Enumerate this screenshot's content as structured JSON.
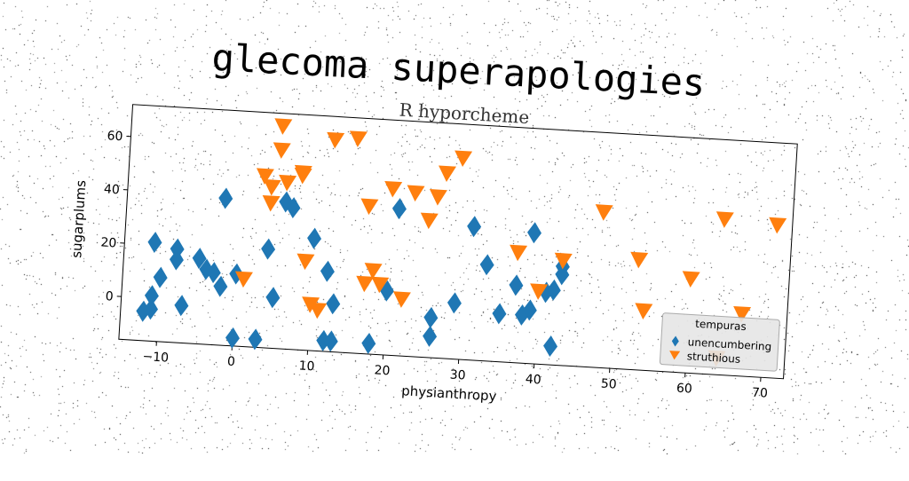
{
  "title": "glecoma superapologies",
  "colors": {
    "series_blue": "#1f77b4",
    "series_orange": "#ff7f0e"
  },
  "chart_data": {
    "type": "scatter",
    "title": "glecoma superapologies",
    "subtitle": "R hyporcheme",
    "xlabel": "physianthropy",
    "ylabel": "sugarplums",
    "xlim": [
      -15,
      73
    ],
    "ylim": [
      -16,
      72
    ],
    "xticks": [
      -10,
      0,
      10,
      20,
      30,
      40,
      50,
      60,
      70
    ],
    "xtick_labels": [
      "−10",
      "0",
      "10",
      "20",
      "30",
      "40",
      "50",
      "60",
      "70"
    ],
    "yticks": [
      0,
      20,
      40,
      60
    ],
    "ytick_labels": [
      "0",
      "20",
      "40",
      "60"
    ],
    "grid": false,
    "legend": {
      "title": "tempuras",
      "placement": "lower-right"
    },
    "series": [
      {
        "name": "unencumbering",
        "marker": "diamond",
        "color": "#1f77b4",
        "points": [
          [
            -12,
            -5
          ],
          [
            -11,
            21
          ],
          [
            -11,
            -4
          ],
          [
            -11,
            1
          ],
          [
            -10,
            8
          ],
          [
            -8,
            19
          ],
          [
            -8,
            15
          ],
          [
            -7,
            -2
          ],
          [
            -5,
            16
          ],
          [
            -4,
            12
          ],
          [
            -3,
            11
          ],
          [
            -2,
            39
          ],
          [
            -2,
            6
          ],
          [
            0,
            11
          ],
          [
            0,
            -13
          ],
          [
            3,
            -13
          ],
          [
            4,
            21
          ],
          [
            5,
            3
          ],
          [
            6,
            39
          ],
          [
            7,
            37
          ],
          [
            10,
            26
          ],
          [
            12,
            14
          ],
          [
            12,
            -12
          ],
          [
            13,
            -12
          ],
          [
            13,
            2
          ],
          [
            18,
            -12
          ],
          [
            20,
            8
          ],
          [
            21,
            39
          ],
          [
            26,
            -8
          ],
          [
            26,
            -1
          ],
          [
            29,
            5
          ],
          [
            31,
            34
          ],
          [
            33,
            20
          ],
          [
            35,
            2
          ],
          [
            37,
            13
          ],
          [
            38,
            2
          ],
          [
            39,
            4
          ],
          [
            39,
            33
          ],
          [
            41,
            11
          ],
          [
            42,
            12
          ],
          [
            42,
            -9
          ],
          [
            43,
            21
          ],
          [
            43,
            18
          ]
        ]
      },
      {
        "name": "struthious",
        "marker": "triangle-down",
        "color": "#ff7f0e",
        "points": [
          [
            1,
            9
          ],
          [
            3,
            48
          ],
          [
            4,
            44
          ],
          [
            4,
            38
          ],
          [
            5,
            67
          ],
          [
            5,
            58
          ],
          [
            6,
            46
          ],
          [
            8,
            50
          ],
          [
            8,
            49
          ],
          [
            9,
            17
          ],
          [
            10,
            1
          ],
          [
            11,
            -1
          ],
          [
            12,
            63
          ],
          [
            15,
            64
          ],
          [
            17,
            39
          ],
          [
            17,
            10
          ],
          [
            18,
            15
          ],
          [
            19,
            10
          ],
          [
            20,
            46
          ],
          [
            22,
            5
          ],
          [
            23,
            45
          ],
          [
            25,
            35
          ],
          [
            26,
            44
          ],
          [
            27,
            53
          ],
          [
            29,
            59
          ],
          [
            37,
            25
          ],
          [
            40,
            11
          ],
          [
            43,
            23
          ],
          [
            48,
            42
          ],
          [
            53,
            25
          ],
          [
            54,
            6
          ],
          [
            60,
            19
          ],
          [
            64,
            42
          ],
          [
            64,
            -10
          ],
          [
            67,
            7
          ],
          [
            71,
            41
          ]
        ]
      }
    ]
  }
}
